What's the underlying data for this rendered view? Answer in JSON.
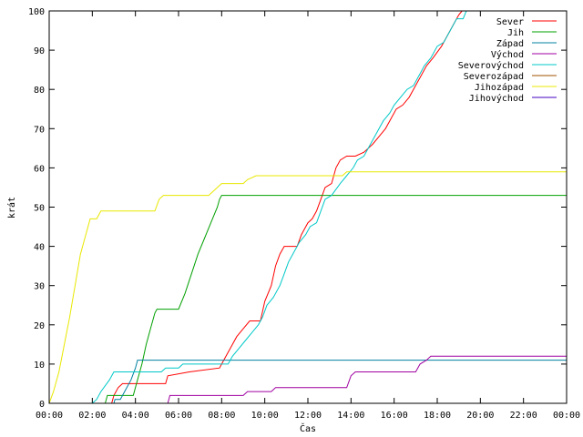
{
  "chart_data": {
    "type": "line",
    "xlabel": "Čas",
    "ylabel": "krát",
    "xlim": [
      0,
      24
    ],
    "ylim": [
      0,
      100
    ],
    "x_ticks": [
      {
        "v": 0,
        "label": "00:00"
      },
      {
        "v": 2,
        "label": "02:00"
      },
      {
        "v": 4,
        "label": "04:00"
      },
      {
        "v": 6,
        "label": "06:00"
      },
      {
        "v": 8,
        "label": "08:00"
      },
      {
        "v": 10,
        "label": "10:00"
      },
      {
        "v": 12,
        "label": "12:00"
      },
      {
        "v": 14,
        "label": "14:00"
      },
      {
        "v": 16,
        "label": "16:00"
      },
      {
        "v": 18,
        "label": "18:00"
      },
      {
        "v": 20,
        "label": "20:00"
      },
      {
        "v": 22,
        "label": "22:00"
      },
      {
        "v": 24,
        "label": "00:00"
      }
    ],
    "y_ticks": [
      0,
      10,
      20,
      30,
      40,
      50,
      60,
      70,
      80,
      90,
      100
    ],
    "grid": false,
    "legend_position": "top-right",
    "series": [
      {
        "name": "Sever",
        "color": "#ff0000",
        "points": [
          [
            2.9,
            0
          ],
          [
            3.0,
            2
          ],
          [
            3.2,
            4
          ],
          [
            3.4,
            5
          ],
          [
            5.4,
            5
          ],
          [
            5.5,
            7
          ],
          [
            6.5,
            8
          ],
          [
            7.9,
            9
          ],
          [
            8.0,
            10
          ],
          [
            8.3,
            13
          ],
          [
            8.7,
            17
          ],
          [
            9.0,
            19
          ],
          [
            9.3,
            21
          ],
          [
            9.8,
            21
          ],
          [
            10.0,
            26
          ],
          [
            10.3,
            30
          ],
          [
            10.5,
            35
          ],
          [
            10.7,
            38
          ],
          [
            10.9,
            40
          ],
          [
            11.5,
            40
          ],
          [
            11.7,
            43
          ],
          [
            12.0,
            46
          ],
          [
            12.2,
            47
          ],
          [
            12.4,
            49
          ],
          [
            12.6,
            52
          ],
          [
            12.8,
            55
          ],
          [
            13.1,
            56
          ],
          [
            13.3,
            60
          ],
          [
            13.5,
            62
          ],
          [
            13.8,
            63
          ],
          [
            14.2,
            63
          ],
          [
            14.6,
            64
          ],
          [
            15.0,
            66
          ],
          [
            15.3,
            68
          ],
          [
            15.6,
            70
          ],
          [
            15.8,
            72
          ],
          [
            16.1,
            75
          ],
          [
            16.4,
            76
          ],
          [
            16.7,
            78
          ],
          [
            17.0,
            81
          ],
          [
            17.2,
            83
          ],
          [
            17.5,
            86
          ],
          [
            17.8,
            88
          ],
          [
            18.2,
            91
          ],
          [
            18.5,
            94
          ],
          [
            18.8,
            97
          ],
          [
            19.0,
            99
          ],
          [
            19.15,
            100
          ]
        ]
      },
      {
        "name": "Jih",
        "color": "#00a000",
        "points": [
          [
            2.6,
            0
          ],
          [
            2.7,
            2
          ],
          [
            3.9,
            2
          ],
          [
            4.1,
            6
          ],
          [
            4.3,
            10
          ],
          [
            4.5,
            15
          ],
          [
            4.7,
            19
          ],
          [
            4.9,
            23
          ],
          [
            5.0,
            24
          ],
          [
            6.0,
            24
          ],
          [
            6.3,
            28
          ],
          [
            6.6,
            33
          ],
          [
            6.9,
            38
          ],
          [
            7.2,
            42
          ],
          [
            7.5,
            46
          ],
          [
            7.8,
            50
          ],
          [
            7.9,
            52
          ],
          [
            8.0,
            53
          ],
          [
            24,
            53
          ]
        ]
      },
      {
        "name": "Západ",
        "color": "#0080a0",
        "points": [
          [
            3.0,
            0
          ],
          [
            3.05,
            1
          ],
          [
            3.3,
            1
          ],
          [
            3.5,
            3
          ],
          [
            3.8,
            6
          ],
          [
            4.0,
            9
          ],
          [
            4.1,
            11
          ],
          [
            24,
            11
          ]
        ]
      },
      {
        "name": "Východ",
        "color": "#a000a0",
        "points": [
          [
            5.5,
            0
          ],
          [
            5.6,
            2
          ],
          [
            9.0,
            2
          ],
          [
            9.2,
            3
          ],
          [
            10.3,
            3
          ],
          [
            10.5,
            4
          ],
          [
            13.8,
            4
          ],
          [
            14.0,
            7
          ],
          [
            14.2,
            8
          ],
          [
            17.0,
            8
          ],
          [
            17.2,
            10
          ],
          [
            17.5,
            11
          ],
          [
            17.7,
            12
          ],
          [
            24,
            12
          ]
        ]
      },
      {
        "name": "Severovýchod",
        "color": "#00c8c8",
        "points": [
          [
            2.0,
            0
          ],
          [
            2.2,
            1
          ],
          [
            2.4,
            3
          ],
          [
            2.8,
            6
          ],
          [
            3.0,
            8
          ],
          [
            5.2,
            8
          ],
          [
            5.4,
            9
          ],
          [
            6.0,
            9
          ],
          [
            6.2,
            10
          ],
          [
            8.3,
            10
          ],
          [
            8.5,
            12
          ],
          [
            8.8,
            14
          ],
          [
            9.1,
            16
          ],
          [
            9.4,
            18
          ],
          [
            9.7,
            20
          ],
          [
            9.9,
            22
          ],
          [
            10.1,
            25
          ],
          [
            10.4,
            27
          ],
          [
            10.7,
            30
          ],
          [
            10.9,
            33
          ],
          [
            11.1,
            36
          ],
          [
            11.3,
            38
          ],
          [
            11.6,
            41
          ],
          [
            11.9,
            43
          ],
          [
            12.1,
            45
          ],
          [
            12.4,
            46
          ],
          [
            12.6,
            49
          ],
          [
            12.8,
            52
          ],
          [
            13.1,
            53
          ],
          [
            13.5,
            56
          ],
          [
            13.8,
            58
          ],
          [
            14.1,
            60
          ],
          [
            14.3,
            62
          ],
          [
            14.6,
            63
          ],
          [
            14.9,
            66
          ],
          [
            15.2,
            69
          ],
          [
            15.5,
            72
          ],
          [
            15.8,
            74
          ],
          [
            16.0,
            76
          ],
          [
            16.3,
            78
          ],
          [
            16.6,
            80
          ],
          [
            16.9,
            81
          ],
          [
            17.2,
            84
          ],
          [
            17.4,
            86
          ],
          [
            17.7,
            88
          ],
          [
            18.0,
            91
          ],
          [
            18.3,
            92
          ],
          [
            18.6,
            95
          ],
          [
            18.9,
            98
          ],
          [
            19.2,
            98
          ],
          [
            19.35,
            100
          ]
        ]
      },
      {
        "name": "Severozápad",
        "color": "#a05000",
        "points": []
      },
      {
        "name": "Jihozápad",
        "color": "#e8e800",
        "points": [
          [
            0,
            0
          ],
          [
            0.2,
            3
          ],
          [
            0.45,
            8
          ],
          [
            0.7,
            15
          ],
          [
            0.95,
            22
          ],
          [
            1.2,
            30
          ],
          [
            1.45,
            38
          ],
          [
            1.7,
            43
          ],
          [
            1.9,
            47
          ],
          [
            2.2,
            47
          ],
          [
            2.4,
            49
          ],
          [
            4.9,
            49
          ],
          [
            5.1,
            52
          ],
          [
            5.3,
            53
          ],
          [
            7.4,
            53
          ],
          [
            7.6,
            54
          ],
          [
            7.8,
            55
          ],
          [
            8.0,
            56
          ],
          [
            9.0,
            56
          ],
          [
            9.2,
            57
          ],
          [
            9.6,
            58
          ],
          [
            13.6,
            58
          ],
          [
            13.8,
            59
          ],
          [
            24,
            59
          ]
        ]
      },
      {
        "name": "Jihovýchod",
        "color": "#4000c0",
        "points": []
      }
    ]
  }
}
